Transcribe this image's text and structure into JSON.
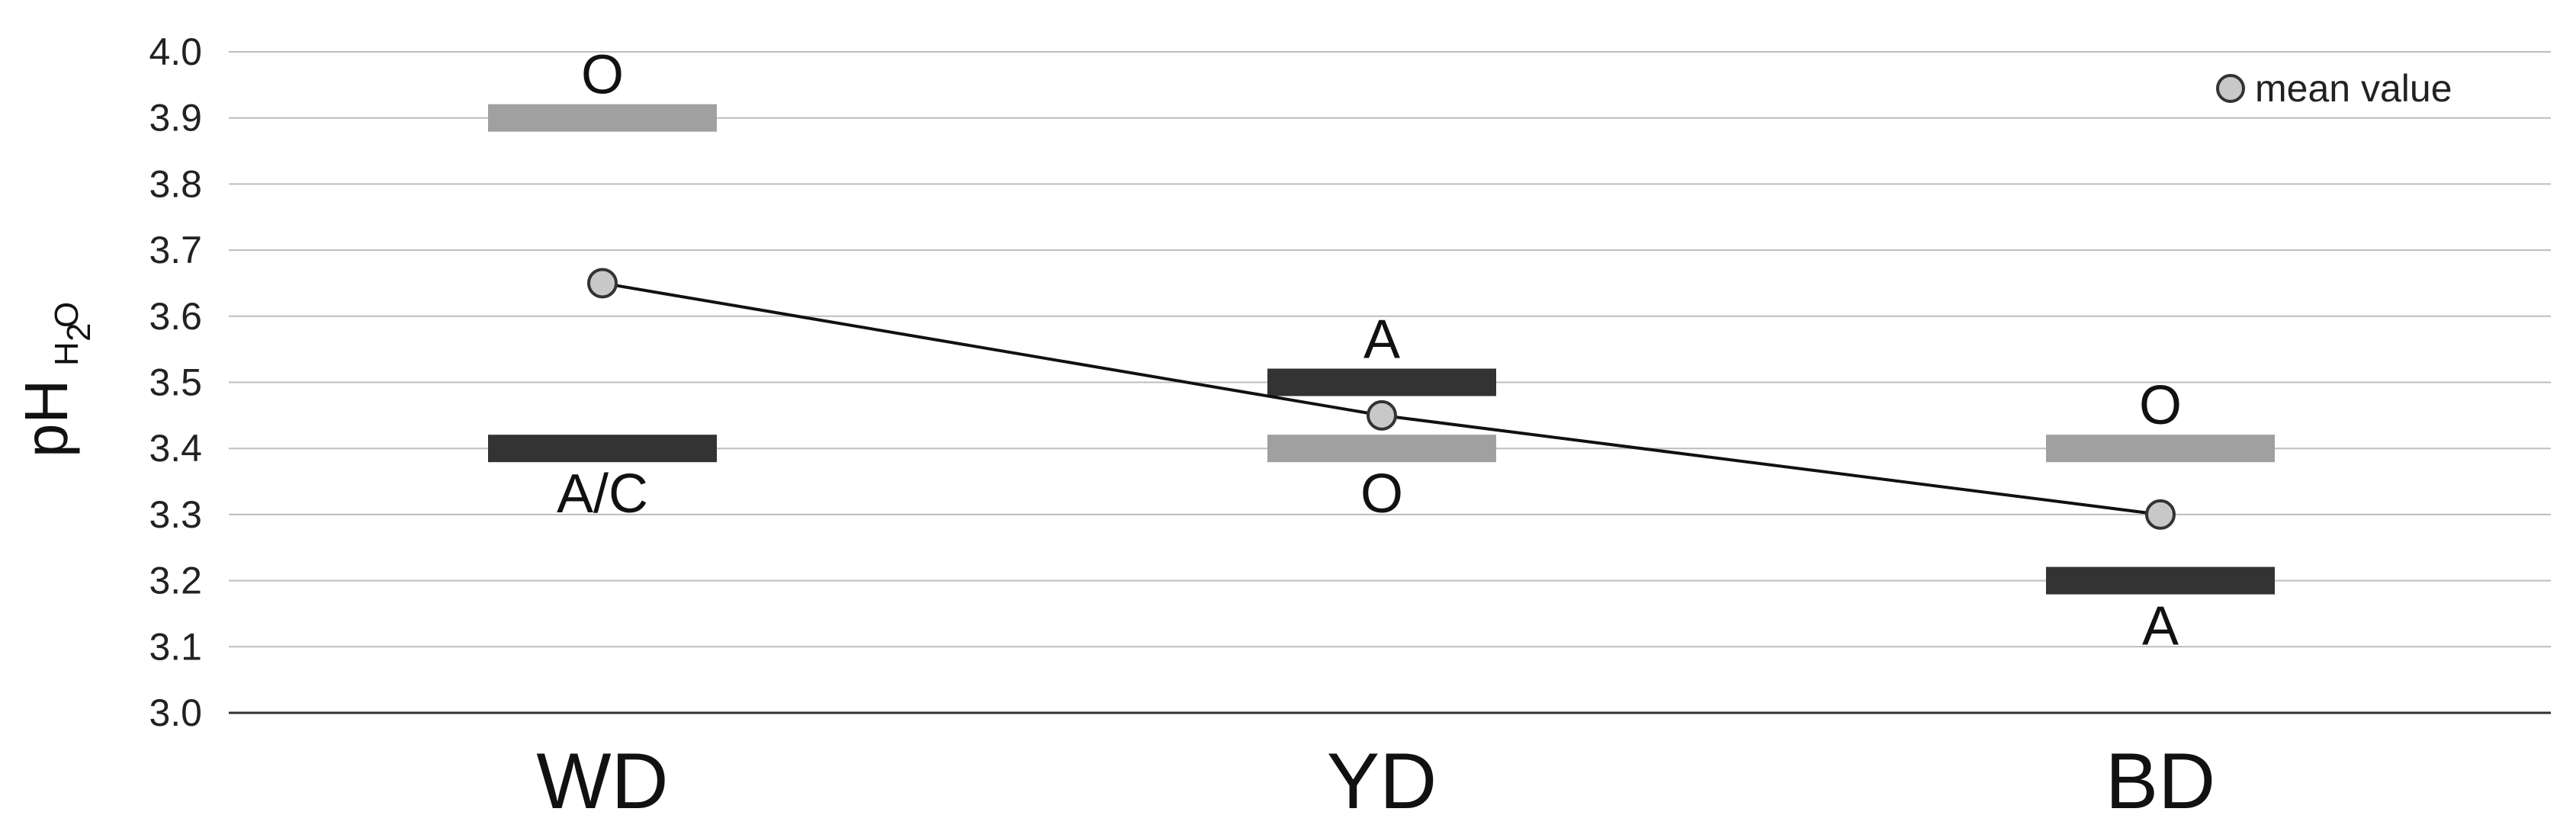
{
  "chart_data": {
    "type": "line",
    "ylabel": "pH",
    "ylabel_subscript": "H2O",
    "ylabel_sub_main": "H",
    "ylabel_sub_index": "2",
    "ylabel_sub_tail": "O",
    "ylim": [
      3.0,
      4.0
    ],
    "y_ticks": [
      "3.0",
      "3.1",
      "3.2",
      "3.3",
      "3.4",
      "3.5",
      "3.6",
      "3.7",
      "3.8",
      "3.9",
      "4.0"
    ],
    "y_tick_values": [
      3.0,
      3.1,
      3.2,
      3.3,
      3.4,
      3.5,
      3.6,
      3.7,
      3.8,
      3.9,
      4.0
    ],
    "grid": true,
    "legend_placement": "top-right",
    "categories": [
      "WD",
      "YD",
      "BD"
    ],
    "series": [
      {
        "name": "mean value",
        "values": [
          3.65,
          3.45,
          3.3
        ],
        "color": "#c8c8c8"
      }
    ],
    "horizon_markers": [
      {
        "category": "WD",
        "label": "O",
        "value": 3.9,
        "color": "#a0a0a0",
        "label_position": "above"
      },
      {
        "category": "WD",
        "label": "A/C",
        "value": 3.4,
        "color": "#333333",
        "label_position": "below"
      },
      {
        "category": "YD",
        "label": "A",
        "value": 3.5,
        "color": "#333333",
        "label_position": "above"
      },
      {
        "category": "YD",
        "label": "O",
        "value": 3.4,
        "color": "#a0a0a0",
        "label_position": "below"
      },
      {
        "category": "BD",
        "label": "O",
        "value": 3.4,
        "color": "#a0a0a0",
        "label_position": "above"
      },
      {
        "category": "BD",
        "label": "A",
        "value": 3.2,
        "color": "#333333",
        "label_position": "below"
      }
    ]
  }
}
